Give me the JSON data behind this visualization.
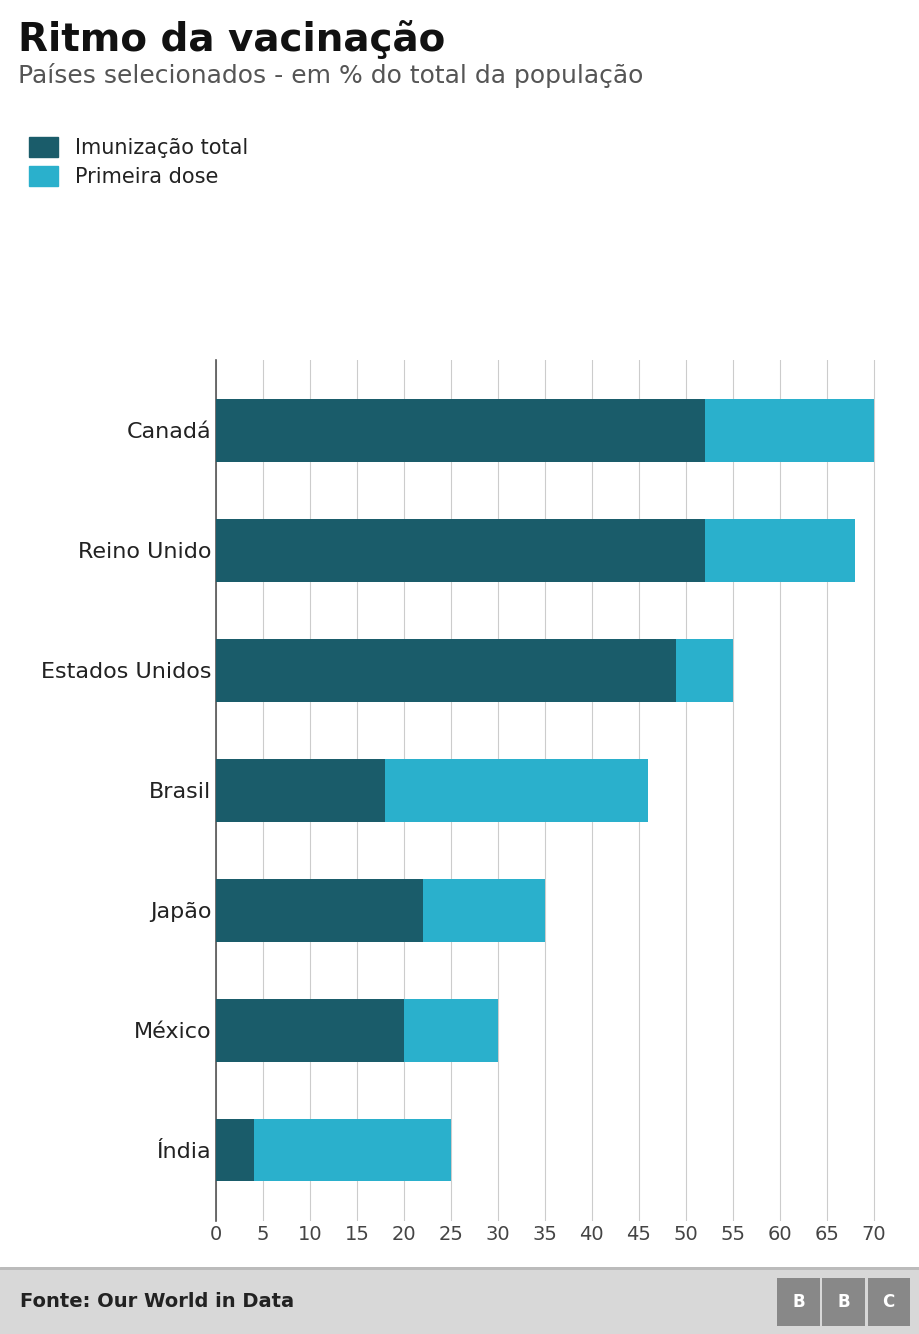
{
  "title": "Ritmo da vacinação",
  "subtitle": "Países selecionados - em % do total da população",
  "legend_labels": [
    "Imunização total",
    "Primeira dose"
  ],
  "color_dark": "#1a5c6a",
  "color_light": "#2ab0cc",
  "categories": [
    "Canadá",
    "Reino Unido",
    "Estados Unidos",
    "Brasil",
    "Japão",
    "México",
    "Índia"
  ],
  "fully_vaccinated": [
    52,
    52,
    49,
    18,
    22,
    20,
    4
  ],
  "first_dose_only": [
    18,
    16,
    6,
    28,
    13,
    10,
    21
  ],
  "xlim": [
    0,
    72
  ],
  "xticks": [
    0,
    5,
    10,
    15,
    20,
    25,
    30,
    35,
    40,
    45,
    50,
    55,
    60,
    65,
    70
  ],
  "footer_text": "Fonte: Our World in Data",
  "footer_bg": "#d8d8d8",
  "bar_height": 0.52,
  "title_fontsize": 28,
  "subtitle_fontsize": 18,
  "tick_fontsize": 14,
  "ylabel_fontsize": 16,
  "legend_fontsize": 15,
  "footer_fontsize": 14
}
